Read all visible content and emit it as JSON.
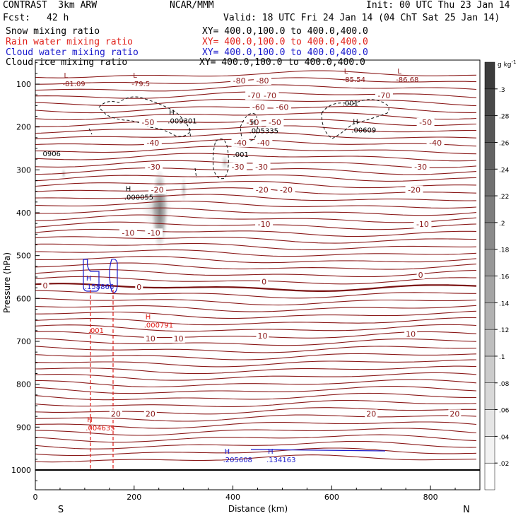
{
  "header": {
    "model": "CONTRAST  3km ARW",
    "center": "NCAR/MMM",
    "init": "Init: 00 UTC Thu 23 Jan 14",
    "fcst_label": "Fcst:",
    "fcst_value": "42 h",
    "valid": "Valid: 18 UTC Fri 24 Jan 14 (04 ChT Sat 25 Jan 14)"
  },
  "fields": [
    {
      "name": "Snow mixing ratio",
      "xy": "XY= 400.0,100.0 to 400.0,400.0",
      "color": "#000000"
    },
    {
      "name": "Rain water mixing ratio",
      "xy": "XY= 400.0,100.0 to 400.0,400.0",
      "color": "#e0201a"
    },
    {
      "name": "Cloud water mixing ratio",
      "xy": "XY= 400.0,100.0 to 400.0,400.0",
      "color": "#1a1acc"
    },
    {
      "name": "Cloud ice mixing ratio",
      "xy": "XY= 400.0,100.0 to 400.0,400.0",
      "color": "#000000"
    }
  ],
  "chart_data": {
    "type": "cross-section",
    "xlabel": "Distance (km)",
    "ylabel": "Pressure (hPa)",
    "xlim": [
      0,
      900
    ],
    "ylim": [
      1045,
      40
    ],
    "x_ticks": [
      0,
      200,
      400,
      600,
      800
    ],
    "y_ticks": [
      100,
      200,
      300,
      400,
      500,
      600,
      700,
      800,
      900,
      1000
    ],
    "endpoints": {
      "left": "S",
      "right": "N"
    },
    "colorbar": {
      "unit": "g kg",
      "unit_exp": "-1",
      "ticks": [
        ".02",
        ".04",
        ".06",
        ".08",
        ".1",
        ".12",
        ".14",
        ".16",
        ".18",
        ".2",
        ".22",
        ".24",
        ".26",
        ".28",
        ".3"
      ],
      "min": 0,
      "max": 0.32,
      "levels": 16
    },
    "temperature_contour_color": "#8b1a1a",
    "zero_contour_color": "#7a1010",
    "temperature_labels": [
      {
        "text": "-80",
        "x": 413,
        "p": 95
      },
      {
        "text": "-80",
        "x": 460,
        "p": 95
      },
      {
        "text": "-70",
        "x": 443,
        "p": 130
      },
      {
        "text": "-70",
        "x": 475,
        "p": 130
      },
      {
        "text": "-70",
        "x": 706,
        "p": 130
      },
      {
        "text": "-60",
        "x": 452,
        "p": 157
      },
      {
        "text": "-60",
        "x": 500,
        "p": 157
      },
      {
        "text": "-50",
        "x": 228,
        "p": 192
      },
      {
        "text": "-50",
        "x": 440,
        "p": 192
      },
      {
        "text": "-50",
        "x": 485,
        "p": 192
      },
      {
        "text": "-50",
        "x": 790,
        "p": 192
      },
      {
        "text": "-40",
        "x": 238,
        "p": 240
      },
      {
        "text": "-40",
        "x": 415,
        "p": 240
      },
      {
        "text": "-40",
        "x": 462,
        "p": 240
      },
      {
        "text": "-40",
        "x": 810,
        "p": 240
      },
      {
        "text": "-30",
        "x": 240,
        "p": 296
      },
      {
        "text": "-30",
        "x": 410,
        "p": 296
      },
      {
        "text": "-30",
        "x": 458,
        "p": 296
      },
      {
        "text": "-30",
        "x": 780,
        "p": 296
      },
      {
        "text": "-20",
        "x": 247,
        "p": 350
      },
      {
        "text": "-20",
        "x": 459,
        "p": 350
      },
      {
        "text": "-20",
        "x": 508,
        "p": 350
      },
      {
        "text": "-20",
        "x": 767,
        "p": 350
      },
      {
        "text": "-10",
        "x": 188,
        "p": 450
      },
      {
        "text": "-10",
        "x": 240,
        "p": 450
      },
      {
        "text": "-10",
        "x": 463,
        "p": 430
      },
      {
        "text": "-10",
        "x": 784,
        "p": 430
      },
      {
        "text": "0",
        "x": 20,
        "p": 573
      },
      {
        "text": "0",
        "x": 210,
        "p": 576
      },
      {
        "text": "0",
        "x": 463,
        "p": 564
      },
      {
        "text": "0",
        "x": 780,
        "p": 548
      },
      {
        "text": "10",
        "x": 233,
        "p": 697
      },
      {
        "text": "10",
        "x": 290,
        "p": 697
      },
      {
        "text": "10",
        "x": 460,
        "p": 690
      },
      {
        "text": "10",
        "x": 760,
        "p": 686
      },
      {
        "text": "20",
        "x": 163,
        "p": 872
      },
      {
        "text": "20",
        "x": 233,
        "p": 872
      },
      {
        "text": "20",
        "x": 680,
        "p": 872
      },
      {
        "text": "20",
        "x": 849,
        "p": 872
      }
    ],
    "extrema_labels": [
      {
        "mark": "L",
        "text": "-81.09",
        "x": 55,
        "p": 95,
        "color": "dark"
      },
      {
        "mark": "L",
        "text": "-79.5",
        "x": 195,
        "p": 95,
        "color": "dark"
      },
      {
        "mark": "L",
        "text": "-85.54",
        "x": 622,
        "p": 85,
        "color": "dark"
      },
      {
        "mark": "L",
        "text": "-86.68",
        "x": 730,
        "p": 85,
        "color": "dark"
      },
      {
        "mark": "H",
        "text": ".009301",
        "x": 268,
        "p": 182,
        "color": "black"
      },
      {
        "mark": "H",
        "text": ".005335",
        "x": 433,
        "p": 205,
        "color": "black"
      },
      {
        "mark": "H",
        "text": ".00609",
        "x": 640,
        "p": 203,
        "color": "black"
      },
      {
        "mark": "H",
        "text": ".000055",
        "x": 180,
        "p": 360,
        "color": "black"
      },
      {
        "mark": "H",
        "text": ".158866",
        "x": 100,
        "p": 568,
        "color": "blue"
      },
      {
        "mark": "H",
        "text": ".000791",
        "x": 220,
        "p": 658,
        "color": "red"
      },
      {
        "mark": "H",
        "text": ".004635",
        "x": 102,
        "p": 898,
        "color": "red"
      },
      {
        "mark": "H",
        "text": ".205608",
        "x": 380,
        "p": 972,
        "color": "blue"
      },
      {
        "mark": "H",
        "text": ".134163",
        "x": 468,
        "p": 972,
        "color": "blue"
      }
    ],
    "contour_labels": [
      {
        "text": ".001",
        "x": 622,
        "p": 150,
        "color": "black"
      },
      {
        "text": ".001",
        "x": 400,
        "p": 270,
        "color": "black"
      },
      {
        "text": ".001",
        "x": 107,
        "p": 680,
        "color": "red"
      },
      {
        "text": "0906",
        "x": 15,
        "p": 268,
        "color": "black"
      }
    ]
  }
}
